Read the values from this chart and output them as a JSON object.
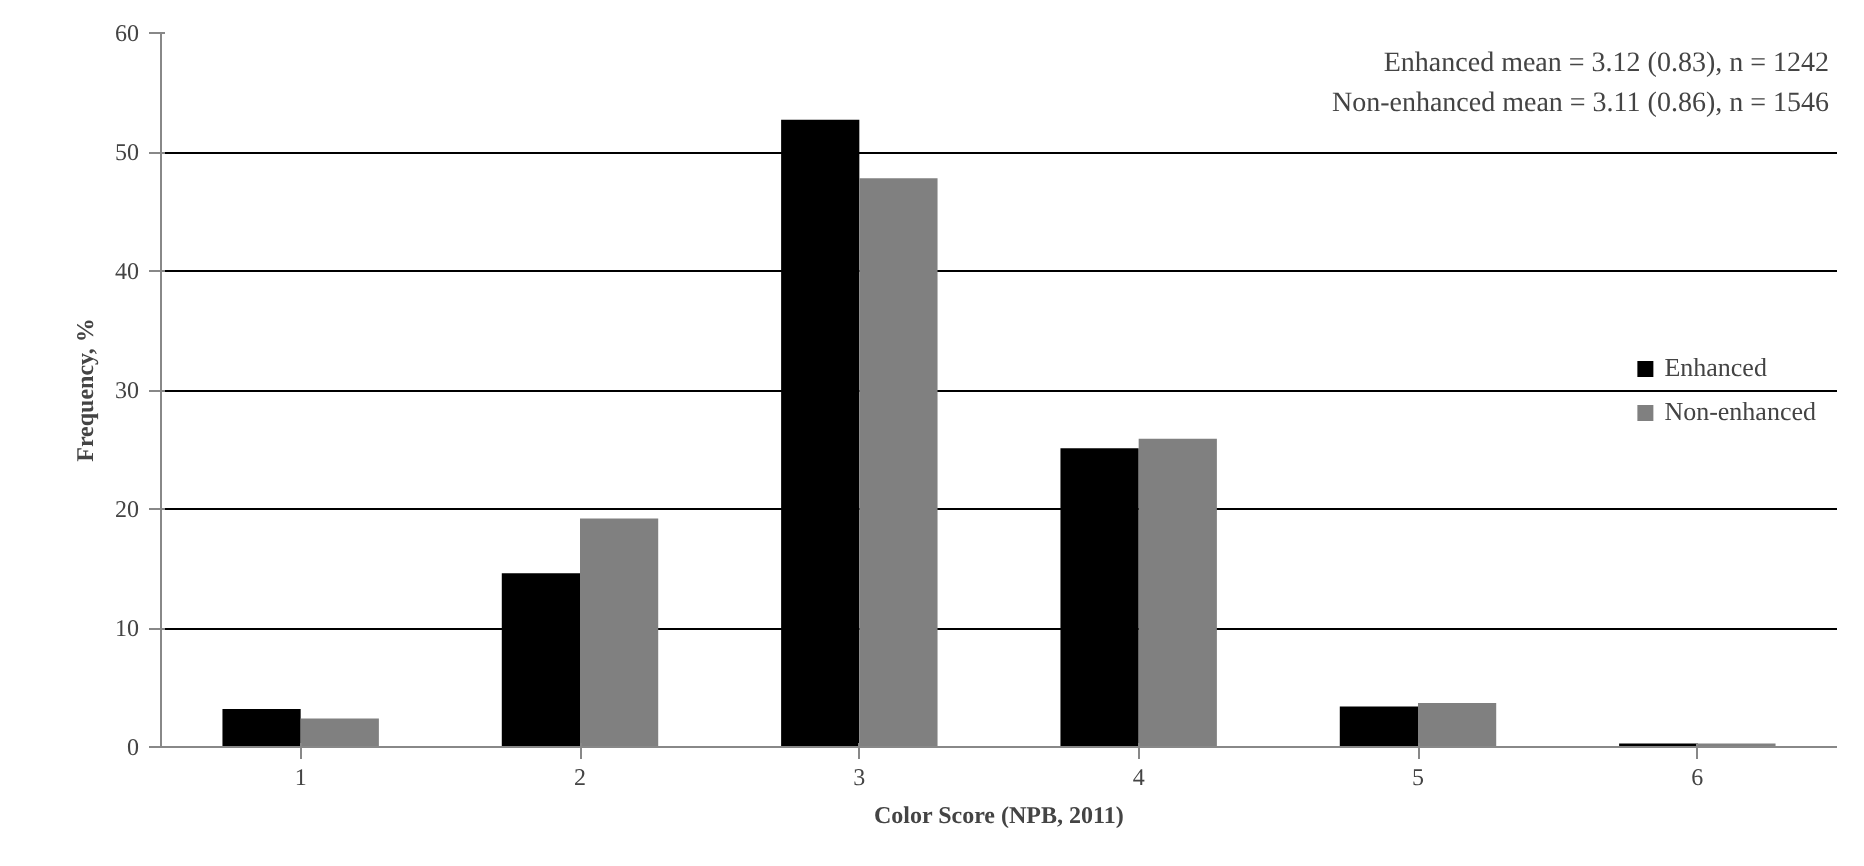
{
  "chart_data": {
    "type": "bar",
    "xlabel": "Color Score (NPB, 2011)",
    "ylabel": "Frequency, %",
    "categories": [
      "1",
      "2",
      "3",
      "4",
      "5",
      "6"
    ],
    "series": [
      {
        "name": "Enhanced",
        "color": "#000000",
        "values": [
          3.2,
          14.6,
          52.7,
          25.1,
          3.4,
          0.3
        ]
      },
      {
        "name": "Non-enhanced",
        "color": "#808080",
        "values": [
          2.4,
          19.2,
          47.8,
          25.9,
          3.7,
          0.3
        ]
      }
    ],
    "ylim": [
      0,
      60
    ],
    "yticks": [
      0,
      10,
      20,
      30,
      40,
      50,
      60
    ],
    "grid": "y",
    "legend": "right",
    "annotations": [
      "Enhanced mean = 3.12 (0.83), n = 1242",
      "Non-enhanced mean = 3.11 (0.86), n = 1546"
    ]
  }
}
